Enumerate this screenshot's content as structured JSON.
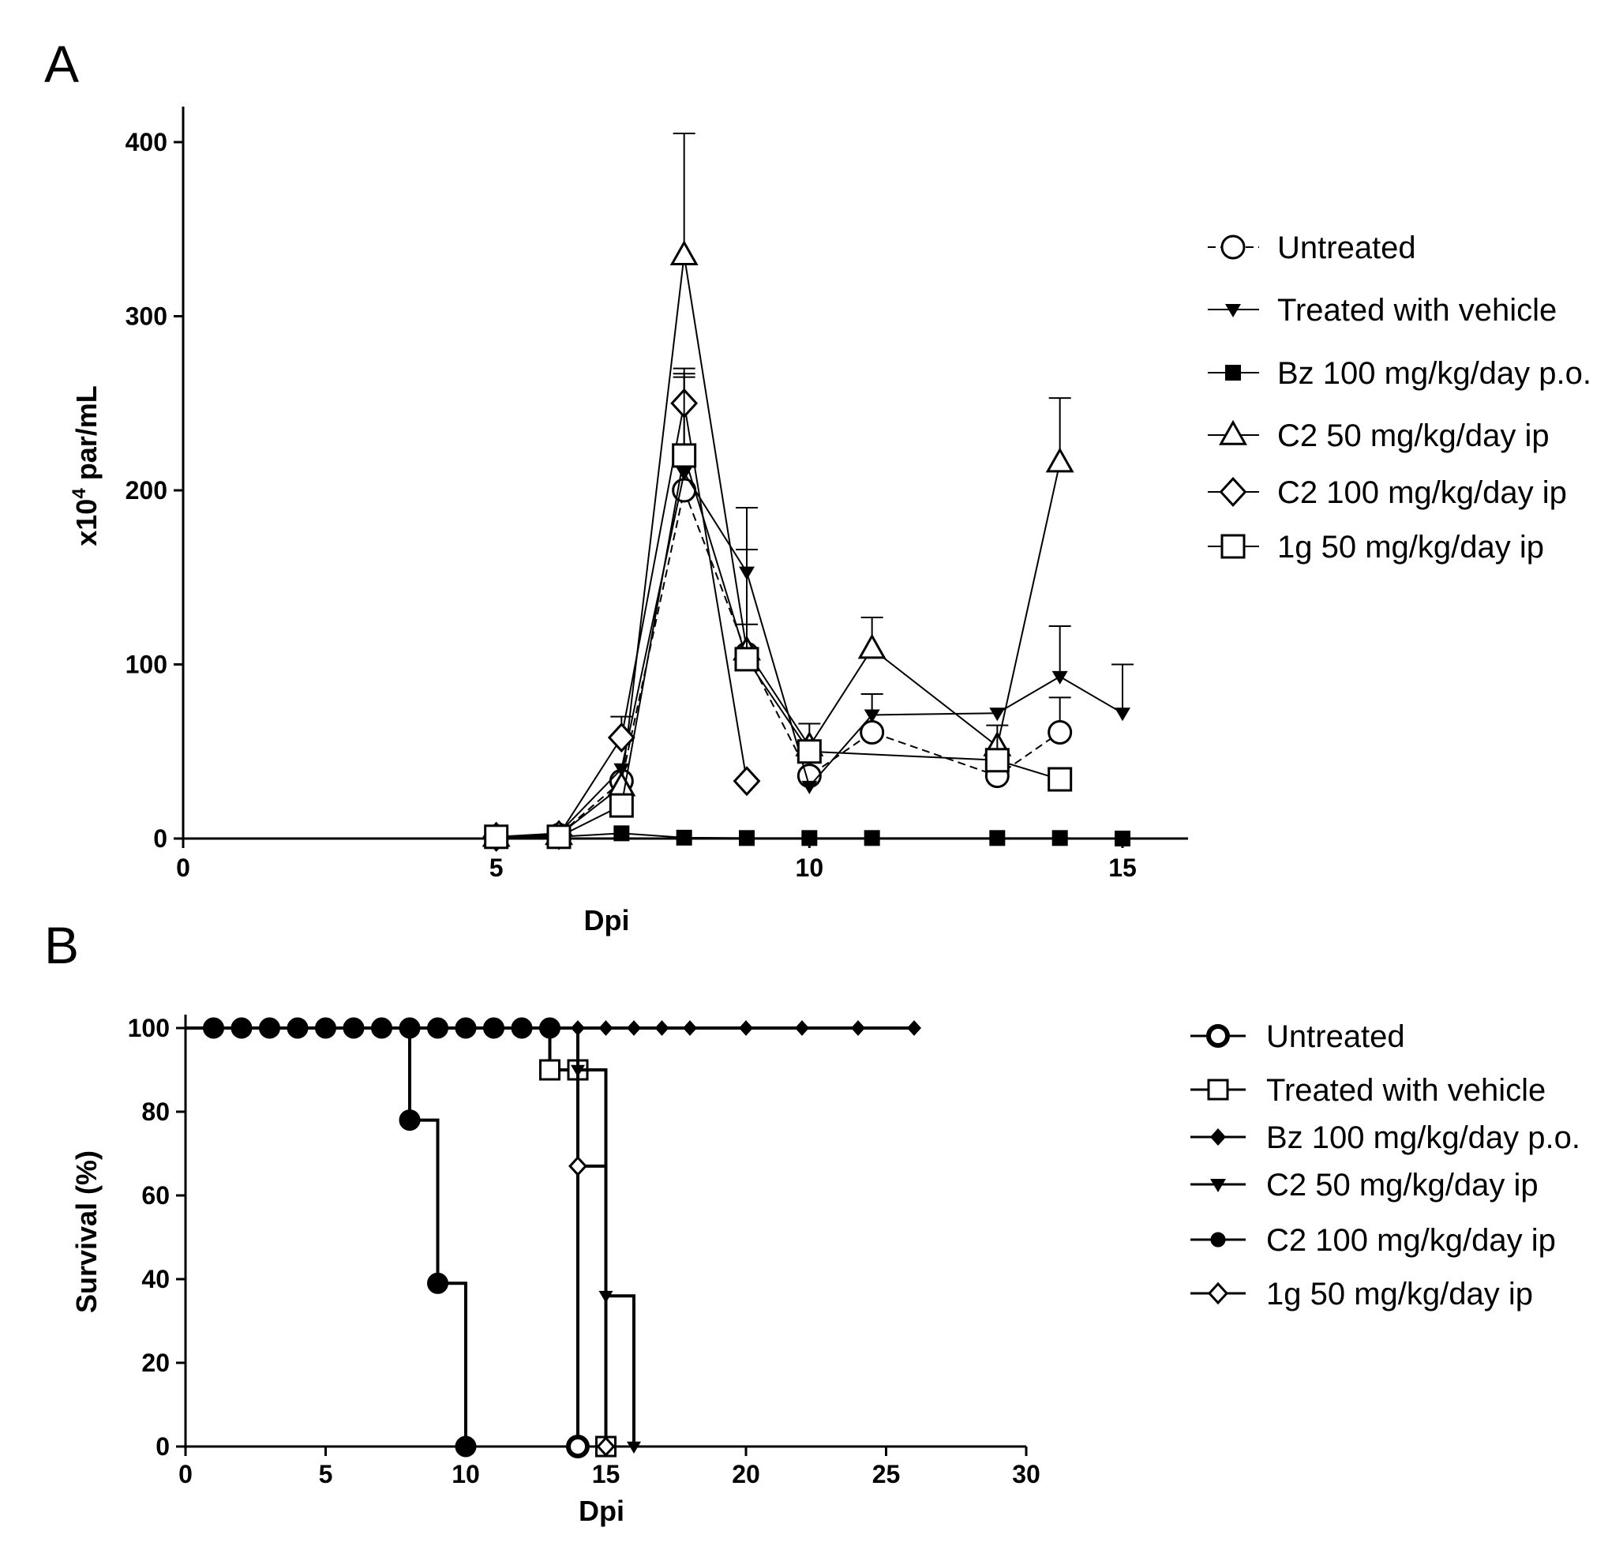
{
  "chart_data": [
    {
      "panel": "A",
      "type": "line",
      "xlabel": "Dpi",
      "ylabel_main": "x10",
      "ylabel_sup": "4",
      "ylabel_rest": " par/mL",
      "xlim": [
        0,
        16
      ],
      "ylim": [
        0,
        420
      ],
      "xticks": [
        0,
        5,
        10,
        15
      ],
      "yticks": [
        0,
        100,
        200,
        300,
        400
      ],
      "legend_position": "right",
      "series": [
        {
          "name": "Untreated",
          "marker": "circle-open",
          "dash": true,
          "points": [
            [
              5,
              1
            ],
            [
              6,
              2
            ],
            [
              7,
              33
            ],
            [
              8,
              200
            ],
            [
              9,
              106
            ],
            [
              10,
              36
            ],
            [
              11,
              61
            ],
            [
              13,
              36
            ],
            [
              14,
              61
            ]
          ],
          "err": [
            0,
            0,
            0,
            0,
            0,
            0,
            0,
            0,
            20
          ]
        },
        {
          "name": "Treated with vehicle",
          "marker": "triangle-down-filled",
          "dash": false,
          "points": [
            [
              5,
              1
            ],
            [
              6,
              3
            ],
            [
              7,
              40
            ],
            [
              8,
              210
            ],
            [
              9,
              153
            ],
            [
              10,
              30
            ],
            [
              11,
              71
            ],
            [
              13,
              72
            ],
            [
              14,
              93
            ],
            [
              15,
              72
            ]
          ],
          "err": [
            0,
            0,
            0,
            55,
            37,
            0,
            12,
            0,
            29,
            28
          ]
        },
        {
          "name": "Bz 100 mg/kg/day p.o.",
          "marker": "square-filled",
          "dash": false,
          "points": [
            [
              5,
              0
            ],
            [
              6,
              1
            ],
            [
              7,
              3
            ],
            [
              8,
              0.5
            ],
            [
              9,
              0.3
            ],
            [
              10,
              0.3
            ],
            [
              11,
              0.3
            ],
            [
              13,
              0.3
            ],
            [
              14,
              0.3
            ],
            [
              15,
              0
            ]
          ],
          "err": [
            0,
            0,
            0,
            0,
            0,
            0,
            0,
            0,
            0,
            0
          ]
        },
        {
          "name": "C2 50 mg/kg/day ip",
          "marker": "triangle-up-open",
          "dash": false,
          "points": [
            [
              5,
              1
            ],
            [
              6,
              2
            ],
            [
              7,
              30
            ],
            [
              8,
              335
            ],
            [
              9,
              108
            ],
            [
              10,
              53
            ],
            [
              11,
              109
            ],
            [
              13,
              53
            ],
            [
              14,
              216
            ]
          ],
          "err": [
            0,
            0,
            0,
            70,
            58,
            13,
            18,
            0,
            37
          ]
        },
        {
          "name": "C2 100 mg/kg/day ip",
          "marker": "diamond-open",
          "dash": false,
          "points": [
            [
              5,
              1
            ],
            [
              6,
              2
            ],
            [
              7,
              58
            ],
            [
              8,
              250
            ],
            [
              9,
              33
            ]
          ],
          "err": [
            0,
            0,
            12,
            20,
            0
          ]
        },
        {
          "name": "1g 50 mg/kg/day ip",
          "marker": "square-open",
          "dash": false,
          "points": [
            [
              5,
              1
            ],
            [
              6,
              1
            ],
            [
              7,
              19
            ],
            [
              8,
              220
            ],
            [
              9,
              103
            ],
            [
              10,
              50
            ],
            [
              13,
              45
            ],
            [
              14,
              34
            ]
          ],
          "err": [
            0,
            0,
            0,
            47,
            20,
            0,
            20,
            0
          ]
        }
      ]
    },
    {
      "panel": "B",
      "type": "line",
      "xlabel": "Dpi",
      "ylabel": "Survival (%)",
      "xlim": [
        0,
        30
      ],
      "ylim": [
        0,
        100
      ],
      "xticks": [
        0,
        5,
        10,
        15,
        20,
        25,
        30
      ],
      "yticks": [
        0,
        20,
        40,
        60,
        80,
        100
      ],
      "legend_position": "right",
      "series": [
        {
          "name": "Untreated",
          "marker": "circle-open-bold",
          "steps": [
            [
              0,
              100
            ],
            [
              13,
              100
            ],
            [
              14,
              0
            ]
          ],
          "markers": [
            [
              14,
              0
            ]
          ]
        },
        {
          "name": "Treated with vehicle",
          "marker": "square-open",
          "steps": [
            [
              0,
              100
            ],
            [
              12,
              100
            ],
            [
              13,
              90
            ],
            [
              14,
              90
            ],
            [
              15,
              0
            ]
          ],
          "markers": [
            [
              13,
              90
            ],
            [
              14,
              90
            ],
            [
              15,
              0
            ]
          ]
        },
        {
          "name": "Bz 100 mg/kg/day p.o.",
          "marker": "diamond-filled",
          "steps": [
            [
              0,
              100
            ],
            [
              26,
              100
            ]
          ],
          "markers": [
            [
              14,
              100
            ],
            [
              15,
              100
            ],
            [
              16,
              100
            ],
            [
              17,
              100
            ],
            [
              18,
              100
            ],
            [
              20,
              100
            ],
            [
              22,
              100
            ],
            [
              24,
              100
            ],
            [
              26,
              100
            ]
          ]
        },
        {
          "name": "C2 50 mg/kg/day ip",
          "marker": "triangle-down-filled",
          "steps": [
            [
              0,
              100
            ],
            [
              14,
              100
            ],
            [
              14,
              90
            ],
            [
              15,
              90
            ],
            [
              15,
              36
            ],
            [
              16,
              36
            ],
            [
              16,
              0
            ]
          ],
          "markers": [
            [
              14,
              90
            ],
            [
              15,
              36
            ],
            [
              16,
              0
            ]
          ]
        },
        {
          "name": "C2 100 mg/kg/day ip",
          "marker": "circle-filled",
          "steps": [
            [
              0,
              100
            ],
            [
              8,
              100
            ],
            [
              8,
              78
            ],
            [
              9,
              78
            ],
            [
              9,
              39
            ],
            [
              10,
              39
            ],
            [
              10,
              0
            ]
          ],
          "markers": [
            [
              1,
              100
            ],
            [
              2,
              100
            ],
            [
              3,
              100
            ],
            [
              4,
              100
            ],
            [
              5,
              100
            ],
            [
              6,
              100
            ],
            [
              7,
              100
            ],
            [
              8,
              100
            ],
            [
              9,
              100
            ],
            [
              10,
              100
            ],
            [
              11,
              100
            ],
            [
              12,
              100
            ],
            [
              13,
              100
            ],
            [
              8,
              78
            ],
            [
              9,
              39
            ],
            [
              10,
              0
            ]
          ]
        },
        {
          "name": "1g 50 mg/kg/day ip",
          "marker": "diamond-open",
          "steps": [
            [
              0,
              100
            ],
            [
              14,
              100
            ],
            [
              14,
              67
            ],
            [
              15,
              67
            ],
            [
              15,
              0
            ]
          ],
          "markers": [
            [
              14,
              67
            ],
            [
              15,
              0
            ]
          ]
        }
      ]
    }
  ]
}
